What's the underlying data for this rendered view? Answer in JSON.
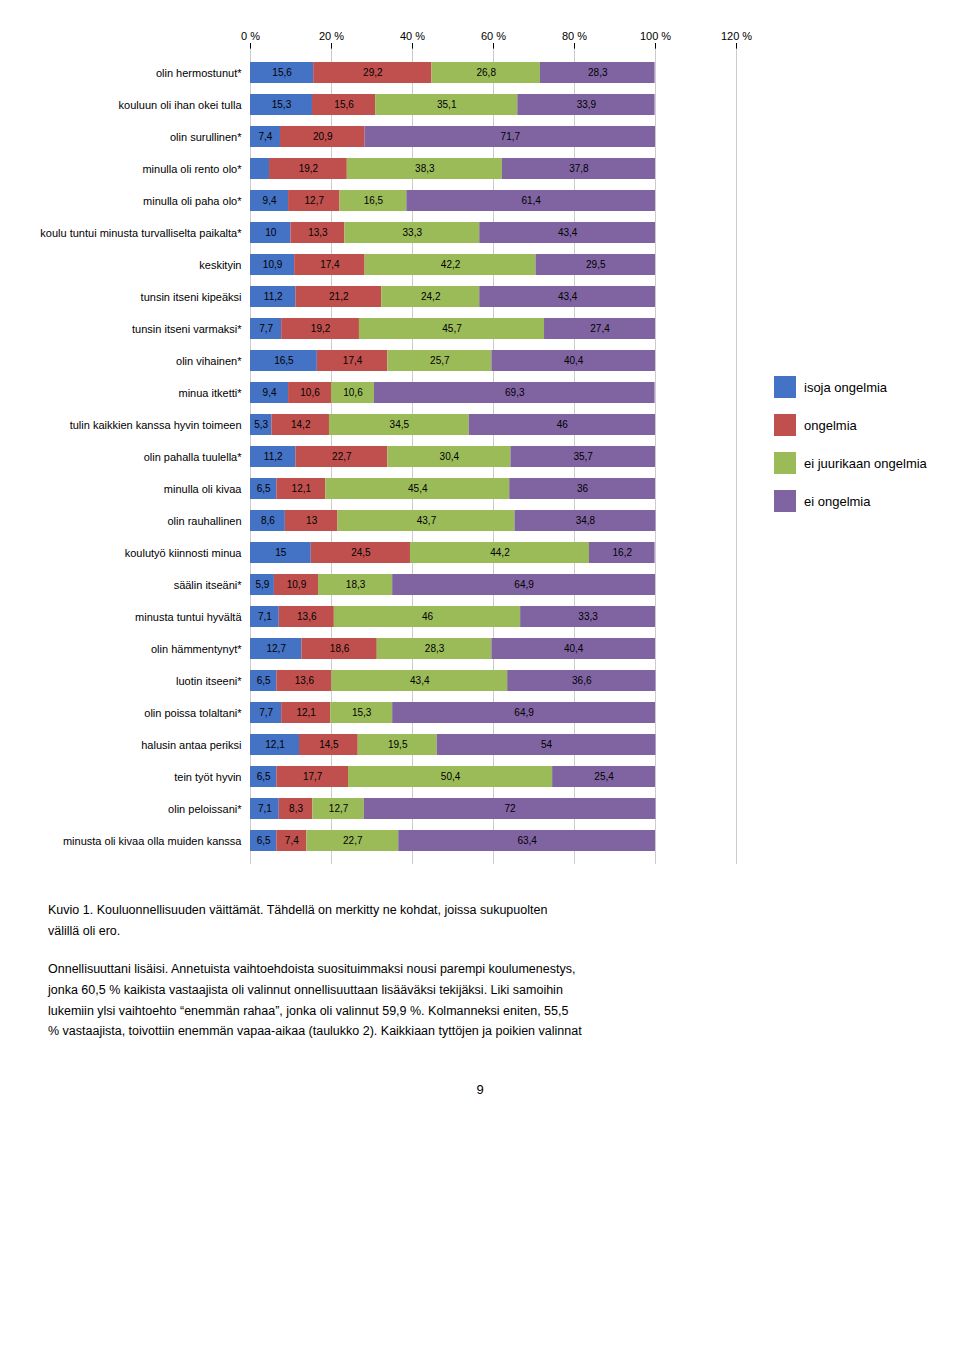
{
  "chart_data": {
    "type": "bar",
    "orientation": "horizontal",
    "stacked": true,
    "data_labels": true,
    "grid": true,
    "legend": "right",
    "categories": [
      "olin hermostunut*",
      "kouluun oli ihan okei tulla",
      "olin surullinen*",
      "minulla oli rento olo*",
      "minulla oli paha olo*",
      "koulu tuntui minusta turvalliselta paikalta*",
      "keskityin",
      "tunsin itseni kipeäksi",
      "tunsin itseni varmaksi*",
      "olin vihainen*",
      "minua itketti*",
      "tulin kaikkien kanssa hyvin toimeen",
      "olin pahalla tuulella*",
      "minulla oli kivaa",
      "olin rauhallinen",
      "koulutyö kiinnosti minua",
      "säälin itseäni*",
      "minusta tuntui hyvältä",
      "olin hämmentynyt*",
      "luotin itseeni*",
      "olin poissa tolaltani*",
      "halusin antaa periksi",
      "tein työt hyvin",
      "olin peloissani*",
      "minusta oli kivaa olla muiden kanssa"
    ],
    "series": [
      {
        "name": "isoja ongelmia",
        "color": "#4472C4",
        "values": [
          15.6,
          15.3,
          7.4,
          4.7,
          9.4,
          10.0,
          10.9,
          11.2,
          7.7,
          16.5,
          9.4,
          5.3,
          11.2,
          6.5,
          8.6,
          15.0,
          5.9,
          7.1,
          12.7,
          6.5,
          7.7,
          12.1,
          6.5,
          7.1,
          6.5
        ],
        "value_labels": [
          "15,6",
          "15,3",
          "7,4",
          null,
          "9,4",
          "10",
          "10,9",
          "11,2",
          "7,7",
          "16,5",
          "9,4",
          "5,3",
          "11,2",
          "6,5",
          "8,6",
          "15",
          "5,9",
          "7,1",
          "12,7",
          "6,5",
          "7,7",
          "12,1",
          "6,5",
          "7,1",
          "6,5"
        ]
      },
      {
        "name": "ongelmia",
        "color": "#C0504D",
        "values": [
          29.2,
          15.6,
          20.9,
          19.2,
          12.7,
          13.3,
          17.4,
          21.2,
          19.2,
          17.4,
          10.6,
          14.2,
          22.7,
          12.1,
          13.0,
          24.5,
          10.9,
          13.6,
          18.6,
          13.6,
          12.1,
          14.5,
          17.7,
          8.3,
          7.4
        ],
        "value_labels": [
          "29,2",
          "15,6",
          "20,9",
          "19,2",
          "12,7",
          "13,3",
          "17,4",
          "21,2",
          "19,2",
          "17,4",
          "10,6",
          "14,2",
          "22,7",
          "12,1",
          "13",
          "24,5",
          "10,9",
          "13,6",
          "18,6",
          "13,6",
          "12,1",
          "14,5",
          "17,7",
          "8,3",
          "7,4"
        ]
      },
      {
        "name": "ei juurikaan ongelmia",
        "color": "#9BBB59",
        "values": [
          26.8,
          35.1,
          0.0,
          38.3,
          16.5,
          33.3,
          42.2,
          24.2,
          45.7,
          25.7,
          10.6,
          34.5,
          30.4,
          45.4,
          43.7,
          44.2,
          18.3,
          46.0,
          28.3,
          43.4,
          15.3,
          19.5,
          50.4,
          12.7,
          22.7
        ],
        "value_labels": [
          "26,8",
          "35,1",
          null,
          "38,3",
          "16,5",
          "33,3",
          "42,2",
          "24,2",
          "45,7",
          "25,7",
          "10,6",
          "34,5",
          "30,4",
          "45,4",
          "43,7",
          "44,2",
          "18,3",
          "46",
          "28,3",
          "43,4",
          "15,3",
          "19,5",
          "50,4",
          "12,7",
          "22,7"
        ]
      },
      {
        "name": "ei ongelmia",
        "color": "#8064A2",
        "values": [
          28.3,
          33.9,
          71.7,
          37.8,
          61.4,
          43.4,
          29.5,
          43.4,
          27.4,
          40.4,
          69.3,
          46.0,
          35.7,
          36.0,
          34.8,
          16.2,
          64.9,
          33.3,
          40.4,
          36.6,
          64.9,
          54.0,
          25.4,
          72.0,
          63.4
        ],
        "value_labels": [
          "28,3",
          "33,9",
          "71,7",
          "37,8",
          "61,4",
          "43,4",
          "29,5",
          "43,4",
          "27,4",
          "40,4",
          "69,3",
          "46",
          "35,7",
          "36",
          "34,8",
          "16,2",
          "64,9",
          "33,3",
          "40,4",
          "36,6",
          "64,9",
          "54",
          "25,4",
          "72",
          "63,4"
        ]
      }
    ],
    "xlim": [
      0,
      120
    ],
    "xticks": [
      {
        "value": 0,
        "label": "0 %"
      },
      {
        "value": 20,
        "label": "20 %"
      },
      {
        "value": 40,
        "label": "40 %"
      },
      {
        "value": 60,
        "label": "60 %"
      },
      {
        "value": 80,
        "label": "80 %"
      },
      {
        "value": 100,
        "label": "100 %"
      },
      {
        "value": 120,
        "label": "120 %"
      }
    ],
    "caption": [
      "Kuvio 1. Kouluonnellisuuden väittämät. Tähdellä on merkitty ne kohdat, joissa sukupuolten",
      "välillä oli ero."
    ],
    "text": [
      "Onnellisuuttani lisäisi. Annetuista vaihtoehdoista suosituimmaksi nousi parempi koulumenestys,",
      "jonka 60,5 % kaikista vastaajista oli valinnut onnellisuuttaan lisääväksi tekijäksi. Liki samoihin",
      "lukemiin ylsi vaihtoehto “enemmän rahaa”, jonka oli valinnut 59,9 %. Kolmanneksi eniten, 55,5",
      "% vastaajista, toivottiin enemmän vapaa-aikaa (taulukko 2). Kaikkiaan tyttöjen ja poikien valinnat"
    ],
    "page_number": "9"
  }
}
